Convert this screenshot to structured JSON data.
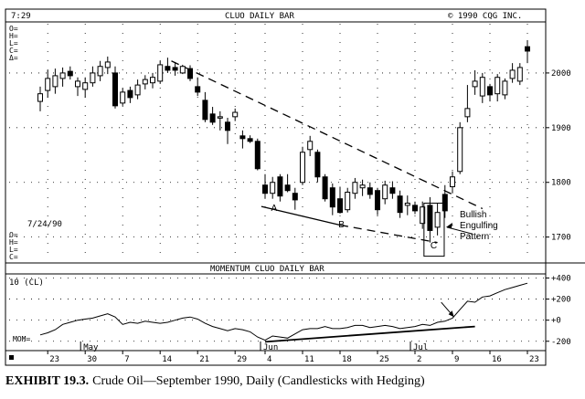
{
  "chart_data": {
    "type": "candlestick",
    "header": {
      "time": "7:29",
      "title": "CLUO DAILY BAR",
      "copyright": "© 1990 CQG INC."
    },
    "readout": [
      "O=",
      "H=",
      "L=",
      "C=",
      "Δ="
    ],
    "readout2": [
      "O=",
      "H=",
      "L=",
      "C="
    ],
    "date_stamp": "7/24/90",
    "y_ticks": [
      1700,
      1800,
      1900,
      2000
    ],
    "ylim": [
      1656,
      2090
    ],
    "x_labels": [
      {
        "i": 1,
        "text": "23"
      },
      {
        "i": 6,
        "text": "30"
      },
      {
        "i": 11,
        "text": "7"
      },
      {
        "i": 16,
        "text": "14"
      },
      {
        "i": 21,
        "text": "21"
      },
      {
        "i": 26,
        "text": "29"
      },
      {
        "i": 30,
        "text": "4"
      },
      {
        "i": 35,
        "text": "11"
      },
      {
        "i": 40,
        "text": "18"
      },
      {
        "i": 45,
        "text": "25"
      },
      {
        "i": 50,
        "text": "2"
      },
      {
        "i": 55,
        "text": "9"
      },
      {
        "i": 60,
        "text": "16"
      },
      {
        "i": 65,
        "text": "23"
      }
    ],
    "month_labels": [
      {
        "i": 6,
        "text": "May"
      },
      {
        "i": 30,
        "text": "Jun"
      },
      {
        "i": 50,
        "text": "Jul"
      }
    ],
    "candles": [
      {
        "o": 1948,
        "h": 1975,
        "l": 1930,
        "c": 1962
      },
      {
        "o": 1968,
        "h": 2005,
        "l": 1955,
        "c": 1990
      },
      {
        "o": 1975,
        "h": 2008,
        "l": 1962,
        "c": 1995
      },
      {
        "o": 1990,
        "h": 2010,
        "l": 1975,
        "c": 2000
      },
      {
        "o": 2003,
        "h": 2012,
        "l": 1988,
        "c": 1995
      },
      {
        "o": 1975,
        "h": 1992,
        "l": 1958,
        "c": 1985
      },
      {
        "o": 1970,
        "h": 1992,
        "l": 1955,
        "c": 1982
      },
      {
        "o": 1982,
        "h": 2012,
        "l": 1975,
        "c": 2000
      },
      {
        "o": 1995,
        "h": 2022,
        "l": 1985,
        "c": 2012
      },
      {
        "o": 2010,
        "h": 2030,
        "l": 1998,
        "c": 2020
      },
      {
        "o": 2000,
        "h": 2012,
        "l": 1935,
        "c": 1940
      },
      {
        "o": 1945,
        "h": 1972,
        "l": 1940,
        "c": 1965
      },
      {
        "o": 1968,
        "h": 1975,
        "l": 1945,
        "c": 1955
      },
      {
        "o": 1960,
        "h": 1988,
        "l": 1952,
        "c": 1978
      },
      {
        "o": 1980,
        "h": 1996,
        "l": 1970,
        "c": 1988
      },
      {
        "o": 1982,
        "h": 2000,
        "l": 1972,
        "c": 1992
      },
      {
        "o": 1985,
        "h": 2022,
        "l": 1980,
        "c": 2015
      },
      {
        "o": 2012,
        "h": 2028,
        "l": 2000,
        "c": 2005
      },
      {
        "o": 2010,
        "h": 2020,
        "l": 1995,
        "c": 2005
      },
      {
        "o": 2000,
        "h": 2015,
        "l": 1998,
        "c": 2012
      },
      {
        "o": 2008,
        "h": 2014,
        "l": 1985,
        "c": 1990
      },
      {
        "o": 1975,
        "h": 1992,
        "l": 1958,
        "c": 1965
      },
      {
        "o": 1950,
        "h": 1965,
        "l": 1910,
        "c": 1915
      },
      {
        "o": 1925,
        "h": 1938,
        "l": 1905,
        "c": 1910
      },
      {
        "o": 1918,
        "h": 1930,
        "l": 1895,
        "c": 1920
      },
      {
        "o": 1910,
        "h": 1918,
        "l": 1870,
        "c": 1895
      },
      {
        "o": 1920,
        "h": 1935,
        "l": 1912,
        "c": 1928
      },
      {
        "o": 1885,
        "h": 1895,
        "l": 1862,
        "c": 1880
      },
      {
        "o": 1880,
        "h": 1886,
        "l": 1872,
        "c": 1875
      },
      {
        "o": 1875,
        "h": 1880,
        "l": 1822,
        "c": 1825
      },
      {
        "o": 1795,
        "h": 1815,
        "l": 1770,
        "c": 1780
      },
      {
        "o": 1780,
        "h": 1810,
        "l": 1770,
        "c": 1800
      },
      {
        "o": 1810,
        "h": 1815,
        "l": 1765,
        "c": 1775
      },
      {
        "o": 1795,
        "h": 1815,
        "l": 1782,
        "c": 1785
      },
      {
        "o": 1780,
        "h": 1790,
        "l": 1750,
        "c": 1768
      },
      {
        "o": 1800,
        "h": 1865,
        "l": 1795,
        "c": 1855
      },
      {
        "o": 1860,
        "h": 1885,
        "l": 1848,
        "c": 1875
      },
      {
        "o": 1855,
        "h": 1860,
        "l": 1800,
        "c": 1810
      },
      {
        "o": 1810,
        "h": 1815,
        "l": 1765,
        "c": 1770
      },
      {
        "o": 1790,
        "h": 1798,
        "l": 1740,
        "c": 1755
      },
      {
        "o": 1770,
        "h": 1792,
        "l": 1743,
        "c": 1745
      },
      {
        "o": 1750,
        "h": 1790,
        "l": 1745,
        "c": 1782
      },
      {
        "o": 1780,
        "h": 1808,
        "l": 1770,
        "c": 1800
      },
      {
        "o": 1790,
        "h": 1805,
        "l": 1775,
        "c": 1795
      },
      {
        "o": 1790,
        "h": 1800,
        "l": 1770,
        "c": 1778
      },
      {
        "o": 1785,
        "h": 1790,
        "l": 1740,
        "c": 1750
      },
      {
        "o": 1770,
        "h": 1803,
        "l": 1760,
        "c": 1795
      },
      {
        "o": 1790,
        "h": 1802,
        "l": 1770,
        "c": 1780
      },
      {
        "o": 1775,
        "h": 1785,
        "l": 1735,
        "c": 1745
      },
      {
        "o": 1758,
        "h": 1776,
        "l": 1740,
        "c": 1762
      },
      {
        "o": 1758,
        "h": 1765,
        "l": 1742,
        "c": 1748
      },
      {
        "o": 1725,
        "h": 1765,
        "l": 1715,
        "c": 1755
      },
      {
        "o": 1758,
        "h": 1773,
        "l": 1690,
        "c": 1712
      },
      {
        "o": 1718,
        "h": 1762,
        "l": 1703,
        "c": 1745
      },
      {
        "o": 1778,
        "h": 1795,
        "l": 1735,
        "c": 1748
      },
      {
        "o": 1792,
        "h": 1820,
        "l": 1780,
        "c": 1810
      },
      {
        "o": 1820,
        "h": 1910,
        "l": 1815,
        "c": 1900
      },
      {
        "o": 1920,
        "h": 1978,
        "l": 1910,
        "c": 1935
      },
      {
        "o": 1975,
        "h": 2005,
        "l": 1960,
        "c": 1985
      },
      {
        "o": 1958,
        "h": 2000,
        "l": 1945,
        "c": 1992
      },
      {
        "o": 1975,
        "h": 1980,
        "l": 1948,
        "c": 1960
      },
      {
        "o": 1962,
        "h": 1998,
        "l": 1948,
        "c": 1992
      },
      {
        "o": 1960,
        "h": 1990,
        "l": 1952,
        "c": 1985
      },
      {
        "o": 1990,
        "h": 2018,
        "l": 1982,
        "c": 2005
      },
      {
        "o": 1985,
        "h": 2018,
        "l": 1978,
        "c": 2010
      },
      {
        "o": 2048,
        "h": 2060,
        "l": 2018,
        "c": 2040
      }
    ],
    "trendlines": [
      {
        "name": "upper",
        "dash": true,
        "from": {
          "i": 17.5,
          "v": 2022
        },
        "to": {
          "i": 59,
          "v": 1752
        }
      },
      {
        "name": "lower",
        "dash": false,
        "from": {
          "i": 29.5,
          "v": 1756
        },
        "to": {
          "i": 40,
          "v": 1722
        }
      },
      {
        "name": "lower-ext",
        "dash": true,
        "from": {
          "i": 40,
          "v": 1722
        },
        "to": {
          "i": 53,
          "v": 1690
        }
      }
    ],
    "point_labels": [
      {
        "text": "A",
        "i": 31.2,
        "v": 1748
      },
      {
        "text": "B",
        "i": 40.2,
        "v": 1718
      },
      {
        "text": "C",
        "i": 52.5,
        "v": 1679
      }
    ],
    "annotation": {
      "lines": [
        "Bullish",
        "Engulfing",
        "Pattern"
      ],
      "box": {
        "i0": 51.2,
        "i1": 53.9,
        "v0": 1665,
        "v1": 1762
      }
    },
    "momentum": {
      "title": "MOMENTUM CLUO DAILY BAR",
      "param": "10 (CL)",
      "label": "MOM=",
      "y_ticks": [
        {
          "v": 400,
          "text": "+400"
        },
        {
          "v": 200,
          "text": "+200"
        },
        {
          "v": 0,
          "text": "+0"
        },
        {
          "v": -200,
          "text": "-200"
        }
      ],
      "ylim": [
        -280,
        430
      ],
      "values": [
        -140,
        -120,
        -90,
        -40,
        -20,
        0,
        10,
        20,
        40,
        60,
        30,
        -40,
        -20,
        -30,
        -10,
        -20,
        -30,
        -20,
        0,
        20,
        30,
        10,
        -30,
        -60,
        -80,
        -100,
        -80,
        -90,
        -110,
        -160,
        -190,
        -150,
        -160,
        -170,
        -130,
        -90,
        -80,
        -80,
        -60,
        -80,
        -80,
        -70,
        -50,
        -50,
        -70,
        -60,
        -50,
        -60,
        -80,
        -70,
        -60,
        -40,
        -50,
        -20,
        -10,
        20,
        100,
        180,
        170,
        220,
        230,
        260,
        290,
        310,
        330,
        350
      ],
      "trendline": {
        "from": {
          "i": 30,
          "v": -205
        },
        "to": {
          "i": 58,
          "v": -60
        }
      },
      "arrow": {
        "from": {
          "i": 53.5,
          "v": 170
        },
        "to": {
          "i": 55.2,
          "v": 30
        }
      }
    }
  },
  "caption": {
    "label": "EXHIBIT 19.3.",
    "text": "Crude Oil—September 1990, Daily (Candlesticks with Hedging)"
  }
}
